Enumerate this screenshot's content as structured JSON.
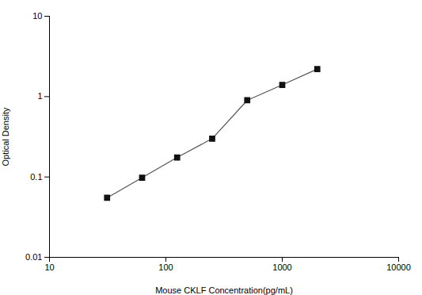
{
  "chart_data": {
    "type": "line",
    "x": [
      31.25,
      62.5,
      125,
      250,
      500,
      1000,
      2000
    ],
    "values": [
      0.055,
      0.098,
      0.175,
      0.3,
      0.9,
      1.4,
      2.2
    ],
    "xlabel": "Mouse CKLF Concentration(pg/mL)",
    "ylabel": "Optical Density",
    "xlim": [
      10,
      10000
    ],
    "ylim": [
      0.01,
      10
    ],
    "xticks": [
      10,
      100,
      1000,
      10000
    ],
    "yticks": [
      0.01,
      0.1,
      1,
      10
    ],
    "log": true,
    "grid": false,
    "color": "#555555",
    "marker": "square",
    "line_style": "solid"
  }
}
